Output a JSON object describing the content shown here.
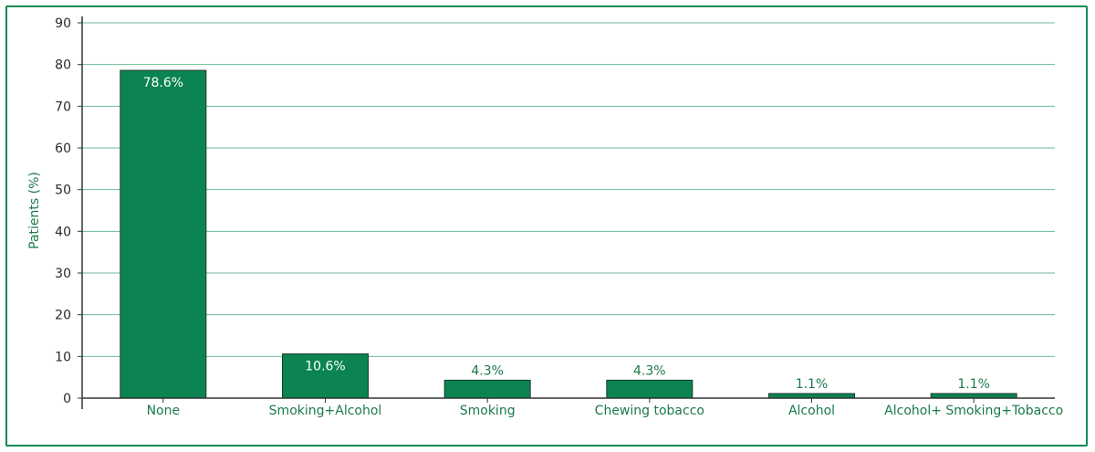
{
  "chart_data": {
    "type": "bar",
    "ylabel": "Patients (%)",
    "xlabel": "",
    "ylim": [
      0,
      90
    ],
    "yticks": [
      0,
      10,
      20,
      30,
      40,
      50,
      60,
      70,
      80,
      90
    ],
    "grid": true,
    "categories": [
      "None",
      "Smoking+Alcohol",
      "Smoking",
      "Chewing tobacco",
      "Alcohol",
      "Alcohol+ Smoking+Tobacco"
    ],
    "values": [
      78.6,
      10.6,
      4.3,
      4.3,
      1.1,
      1.1
    ],
    "data_labels": [
      "78.6%",
      "10.6%",
      "4.3%",
      "4.3%",
      "1.1%",
      "1.1%"
    ],
    "colors": {
      "bar": "#0b8451",
      "bar_edge": "#1f3a2c",
      "grid": "#6dbb94",
      "frame": "#0e8a55",
      "axis": "#333333",
      "label_inside": "#ffffff",
      "label_outside": "#1a7a4a"
    }
  }
}
